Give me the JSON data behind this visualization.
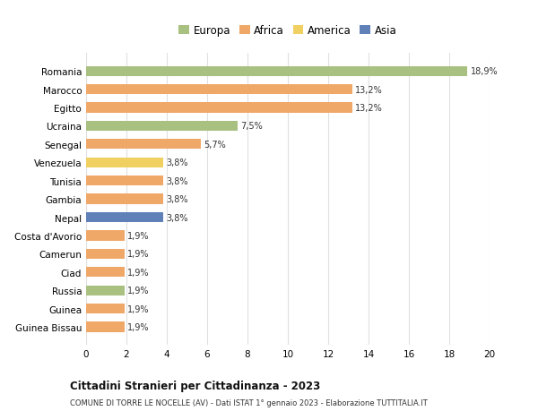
{
  "countries": [
    "Guinea Bissau",
    "Guinea",
    "Russia",
    "Ciad",
    "Camerun",
    "Costa d'Avorio",
    "Nepal",
    "Gambia",
    "Tunisia",
    "Venezuela",
    "Senegal",
    "Ucraina",
    "Egitto",
    "Marocco",
    "Romania"
  ],
  "values": [
    1.9,
    1.9,
    1.9,
    1.9,
    1.9,
    1.9,
    3.8,
    3.8,
    3.8,
    3.8,
    5.7,
    7.5,
    13.2,
    13.2,
    18.9
  ],
  "bar_colors": [
    "#f0a868",
    "#f0a868",
    "#a8c080",
    "#f0a868",
    "#f0a868",
    "#f0a868",
    "#6080b8",
    "#f0a868",
    "#f0a868",
    "#f0d060",
    "#f0a868",
    "#a8c080",
    "#f0a868",
    "#f0a868",
    "#a8c080"
  ],
  "labels": [
    "1,9%",
    "1,9%",
    "1,9%",
    "1,9%",
    "1,9%",
    "1,9%",
    "3,8%",
    "3,8%",
    "3,8%",
    "3,8%",
    "5,7%",
    "7,5%",
    "13,2%",
    "13,2%",
    "18,9%"
  ],
  "title": "Cittadini Stranieri per Cittadinanza - 2023",
  "subtitle": "COMUNE DI TORRE LE NOCELLE (AV) - Dati ISTAT 1° gennaio 2023 - Elaborazione TUTTITALIA.IT",
  "legend_labels": [
    "Europa",
    "Africa",
    "America",
    "Asia"
  ],
  "legend_colors": [
    "#a8c080",
    "#f0a868",
    "#f0d060",
    "#6080b8"
  ],
  "xlim": [
    0,
    20
  ],
  "xticks": [
    0,
    2,
    4,
    6,
    8,
    10,
    12,
    14,
    16,
    18,
    20
  ],
  "bg_color": "#ffffff",
  "grid_color": "#e0e0e0"
}
